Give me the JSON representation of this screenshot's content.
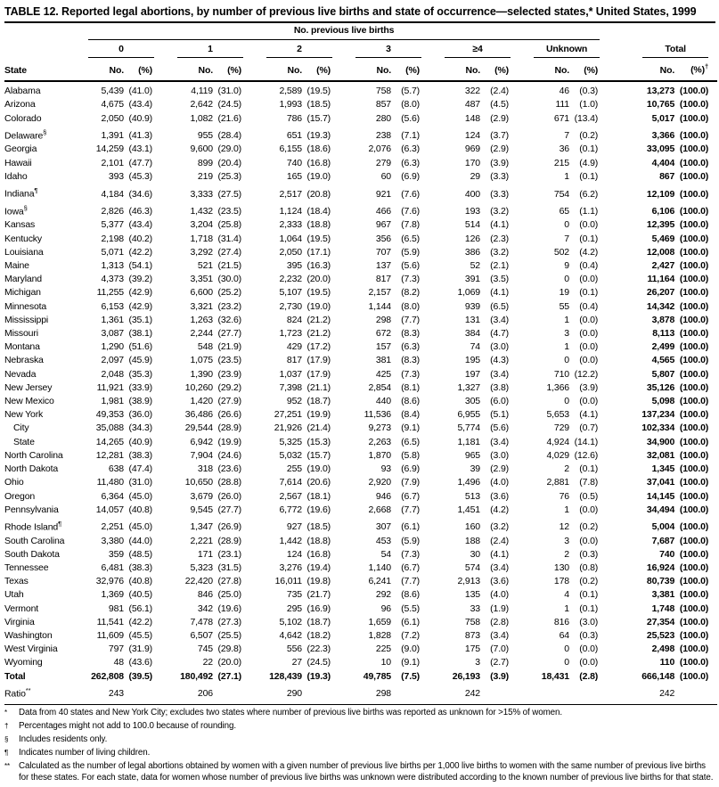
{
  "title": "TABLE 12. Reported legal abortions, by number of previous live births and state of occurrence—selected states,* United States, 1999",
  "table": {
    "spanner": "No. previous live births",
    "state_col": "State",
    "groups": [
      "0",
      "1",
      "2",
      "3",
      "≥4",
      "Unknown"
    ],
    "total_label": "Total",
    "no_label": "No.",
    "pct_label": "(%)",
    "total_pct_sup": "†",
    "rows": [
      {
        "state": "Alabama",
        "sup": "",
        "indent": false,
        "cells": [
          "5,439",
          "(41.0)",
          "4,119",
          "(31.0)",
          "2,589",
          "(19.5)",
          "758",
          "(5.7)",
          "322",
          "(2.4)",
          "46",
          "(0.3)",
          "13,273",
          "(100.0)"
        ]
      },
      {
        "state": "Arizona",
        "sup": "",
        "indent": false,
        "cells": [
          "4,675",
          "(43.4)",
          "2,642",
          "(24.5)",
          "1,993",
          "(18.5)",
          "857",
          "(8.0)",
          "487",
          "(4.5)",
          "111",
          "(1.0)",
          "10,765",
          "(100.0)"
        ]
      },
      {
        "state": "Colorado",
        "sup": "",
        "indent": false,
        "cells": [
          "2,050",
          "(40.9)",
          "1,082",
          "(21.6)",
          "786",
          "(15.7)",
          "280",
          "(5.6)",
          "148",
          "(2.9)",
          "671",
          "(13.4)",
          "5,017",
          "(100.0)"
        ]
      },
      {
        "state": "Delaware",
        "sup": "§",
        "indent": false,
        "cells": [
          "1,391",
          "(41.3)",
          "955",
          "(28.4)",
          "651",
          "(19.3)",
          "238",
          "(7.1)",
          "124",
          "(3.7)",
          "7",
          "(0.2)",
          "3,366",
          "(100.0)"
        ]
      },
      {
        "state": "Georgia",
        "sup": "",
        "indent": false,
        "cells": [
          "14,259",
          "(43.1)",
          "9,600",
          "(29.0)",
          "6,155",
          "(18.6)",
          "2,076",
          "(6.3)",
          "969",
          "(2.9)",
          "36",
          "(0.1)",
          "33,095",
          "(100.0)"
        ]
      },
      {
        "state": "Hawaii",
        "sup": "",
        "indent": false,
        "cells": [
          "2,101",
          "(47.7)",
          "899",
          "(20.4)",
          "740",
          "(16.8)",
          "279",
          "(6.3)",
          "170",
          "(3.9)",
          "215",
          "(4.9)",
          "4,404",
          "(100.0)"
        ]
      },
      {
        "state": "Idaho",
        "sup": "",
        "indent": false,
        "cells": [
          "393",
          "(45.3)",
          "219",
          "(25.3)",
          "165",
          "(19.0)",
          "60",
          "(6.9)",
          "29",
          "(3.3)",
          "1",
          "(0.1)",
          "867",
          "(100.0)"
        ]
      },
      {
        "state": "Indiana",
        "sup": "¶",
        "indent": false,
        "cells": [
          "4,184",
          "(34.6)",
          "3,333",
          "(27.5)",
          "2,517",
          "(20.8)",
          "921",
          "(7.6)",
          "400",
          "(3.3)",
          "754",
          "(6.2)",
          "12,109",
          "(100.0)"
        ]
      },
      {
        "state": "Iowa",
        "sup": "§",
        "indent": false,
        "cells": [
          "2,826",
          "(46.3)",
          "1,432",
          "(23.5)",
          "1,124",
          "(18.4)",
          "466",
          "(7.6)",
          "193",
          "(3.2)",
          "65",
          "(1.1)",
          "6,106",
          "(100.0)"
        ]
      },
      {
        "state": "Kansas",
        "sup": "",
        "indent": false,
        "cells": [
          "5,377",
          "(43.4)",
          "3,204",
          "(25.8)",
          "2,333",
          "(18.8)",
          "967",
          "(7.8)",
          "514",
          "(4.1)",
          "0",
          "(0.0)",
          "12,395",
          "(100.0)"
        ]
      },
      {
        "state": "Kentucky",
        "sup": "",
        "indent": false,
        "cells": [
          "2,198",
          "(40.2)",
          "1,718",
          "(31.4)",
          "1,064",
          "(19.5)",
          "356",
          "(6.5)",
          "126",
          "(2.3)",
          "7",
          "(0.1)",
          "5,469",
          "(100.0)"
        ]
      },
      {
        "state": "Louisiana",
        "sup": "",
        "indent": false,
        "cells": [
          "5,071",
          "(42.2)",
          "3,292",
          "(27.4)",
          "2,050",
          "(17.1)",
          "707",
          "(5.9)",
          "386",
          "(3.2)",
          "502",
          "(4.2)",
          "12,008",
          "(100.0)"
        ]
      },
      {
        "state": "Maine",
        "sup": "",
        "indent": false,
        "cells": [
          "1,313",
          "(54.1)",
          "521",
          "(21.5)",
          "395",
          "(16.3)",
          "137",
          "(5.6)",
          "52",
          "(2.1)",
          "9",
          "(0.4)",
          "2,427",
          "(100.0)"
        ]
      },
      {
        "state": "Maryland",
        "sup": "",
        "indent": false,
        "cells": [
          "4,373",
          "(39.2)",
          "3,351",
          "(30.0)",
          "2,232",
          "(20.0)",
          "817",
          "(7.3)",
          "391",
          "(3.5)",
          "0",
          "(0.0)",
          "11,164",
          "(100.0)"
        ]
      },
      {
        "state": "Michigan",
        "sup": "",
        "indent": false,
        "cells": [
          "11,255",
          "(42.9)",
          "6,600",
          "(25.2)",
          "5,107",
          "(19.5)",
          "2,157",
          "(8.2)",
          "1,069",
          "(4.1)",
          "19",
          "(0.1)",
          "26,207",
          "(100.0)"
        ]
      },
      {
        "state": "Minnesota",
        "sup": "",
        "indent": false,
        "cells": [
          "6,153",
          "(42.9)",
          "3,321",
          "(23.2)",
          "2,730",
          "(19.0)",
          "1,144",
          "(8.0)",
          "939",
          "(6.5)",
          "55",
          "(0.4)",
          "14,342",
          "(100.0)"
        ]
      },
      {
        "state": "Mississippi",
        "sup": "",
        "indent": false,
        "cells": [
          "1,361",
          "(35.1)",
          "1,263",
          "(32.6)",
          "824",
          "(21.2)",
          "298",
          "(7.7)",
          "131",
          "(3.4)",
          "1",
          "(0.0)",
          "3,878",
          "(100.0)"
        ]
      },
      {
        "state": "Missouri",
        "sup": "",
        "indent": false,
        "cells": [
          "3,087",
          "(38.1)",
          "2,244",
          "(27.7)",
          "1,723",
          "(21.2)",
          "672",
          "(8.3)",
          "384",
          "(4.7)",
          "3",
          "(0.0)",
          "8,113",
          "(100.0)"
        ]
      },
      {
        "state": "Montana",
        "sup": "",
        "indent": false,
        "cells": [
          "1,290",
          "(51.6)",
          "548",
          "(21.9)",
          "429",
          "(17.2)",
          "157",
          "(6.3)",
          "74",
          "(3.0)",
          "1",
          "(0.0)",
          "2,499",
          "(100.0)"
        ]
      },
      {
        "state": "Nebraska",
        "sup": "",
        "indent": false,
        "cells": [
          "2,097",
          "(45.9)",
          "1,075",
          "(23.5)",
          "817",
          "(17.9)",
          "381",
          "(8.3)",
          "195",
          "(4.3)",
          "0",
          "(0.0)",
          "4,565",
          "(100.0)"
        ]
      },
      {
        "state": "Nevada",
        "sup": "",
        "indent": false,
        "cells": [
          "2,048",
          "(35.3)",
          "1,390",
          "(23.9)",
          "1,037",
          "(17.9)",
          "425",
          "(7.3)",
          "197",
          "(3.4)",
          "710",
          "(12.2)",
          "5,807",
          "(100.0)"
        ]
      },
      {
        "state": "New Jersey",
        "sup": "",
        "indent": false,
        "cells": [
          "11,921",
          "(33.9)",
          "10,260",
          "(29.2)",
          "7,398",
          "(21.1)",
          "2,854",
          "(8.1)",
          "1,327",
          "(3.8)",
          "1,366",
          "(3.9)",
          "35,126",
          "(100.0)"
        ]
      },
      {
        "state": "New Mexico",
        "sup": "",
        "indent": false,
        "cells": [
          "1,981",
          "(38.9)",
          "1,420",
          "(27.9)",
          "952",
          "(18.7)",
          "440",
          "(8.6)",
          "305",
          "(6.0)",
          "0",
          "(0.0)",
          "5,098",
          "(100.0)"
        ]
      },
      {
        "state": "New York",
        "sup": "",
        "indent": false,
        "cells": [
          "49,353",
          "(36.0)",
          "36,486",
          "(26.6)",
          "27,251",
          "(19.9)",
          "11,536",
          "(8.4)",
          "6,955",
          "(5.1)",
          "5,653",
          "(4.1)",
          "137,234",
          "(100.0)"
        ]
      },
      {
        "state": "City",
        "sup": "",
        "indent": true,
        "cells": [
          "35,088",
          "(34.3)",
          "29,544",
          "(28.9)",
          "21,926",
          "(21.4)",
          "9,273",
          "(9.1)",
          "5,774",
          "(5.6)",
          "729",
          "(0.7)",
          "102,334",
          "(100.0)"
        ]
      },
      {
        "state": "State",
        "sup": "",
        "indent": true,
        "cells": [
          "14,265",
          "(40.9)",
          "6,942",
          "(19.9)",
          "5,325",
          "(15.3)",
          "2,263",
          "(6.5)",
          "1,181",
          "(3.4)",
          "4,924",
          "(14.1)",
          "34,900",
          "(100.0)"
        ]
      },
      {
        "state": "North Carolina",
        "sup": "",
        "indent": false,
        "cells": [
          "12,281",
          "(38.3)",
          "7,904",
          "(24.6)",
          "5,032",
          "(15.7)",
          "1,870",
          "(5.8)",
          "965",
          "(3.0)",
          "4,029",
          "(12.6)",
          "32,081",
          "(100.0)"
        ]
      },
      {
        "state": "North Dakota",
        "sup": "",
        "indent": false,
        "cells": [
          "638",
          "(47.4)",
          "318",
          "(23.6)",
          "255",
          "(19.0)",
          "93",
          "(6.9)",
          "39",
          "(2.9)",
          "2",
          "(0.1)",
          "1,345",
          "(100.0)"
        ]
      },
      {
        "state": "Ohio",
        "sup": "",
        "indent": false,
        "cells": [
          "11,480",
          "(31.0)",
          "10,650",
          "(28.8)",
          "7,614",
          "(20.6)",
          "2,920",
          "(7.9)",
          "1,496",
          "(4.0)",
          "2,881",
          "(7.8)",
          "37,041",
          "(100.0)"
        ]
      },
      {
        "state": "Oregon",
        "sup": "",
        "indent": false,
        "cells": [
          "6,364",
          "(45.0)",
          "3,679",
          "(26.0)",
          "2,567",
          "(18.1)",
          "946",
          "(6.7)",
          "513",
          "(3.6)",
          "76",
          "(0.5)",
          "14,145",
          "(100.0)"
        ]
      },
      {
        "state": "Pennsylvania",
        "sup": "",
        "indent": false,
        "cells": [
          "14,057",
          "(40.8)",
          "9,545",
          "(27.7)",
          "6,772",
          "(19.6)",
          "2,668",
          "(7.7)",
          "1,451",
          "(4.2)",
          "1",
          "(0.0)",
          "34,494",
          "(100.0)"
        ]
      },
      {
        "state": "Rhode Island",
        "sup": "¶",
        "indent": false,
        "cells": [
          "2,251",
          "(45.0)",
          "1,347",
          "(26.9)",
          "927",
          "(18.5)",
          "307",
          "(6.1)",
          "160",
          "(3.2)",
          "12",
          "(0.2)",
          "5,004",
          "(100.0)"
        ]
      },
      {
        "state": "South Carolina",
        "sup": "",
        "indent": false,
        "cells": [
          "3,380",
          "(44.0)",
          "2,221",
          "(28.9)",
          "1,442",
          "(18.8)",
          "453",
          "(5.9)",
          "188",
          "(2.4)",
          "3",
          "(0.0)",
          "7,687",
          "(100.0)"
        ]
      },
      {
        "state": "South Dakota",
        "sup": "",
        "indent": false,
        "cells": [
          "359",
          "(48.5)",
          "171",
          "(23.1)",
          "124",
          "(16.8)",
          "54",
          "(7.3)",
          "30",
          "(4.1)",
          "2",
          "(0.3)",
          "740",
          "(100.0)"
        ]
      },
      {
        "state": "Tennessee",
        "sup": "",
        "indent": false,
        "cells": [
          "6,481",
          "(38.3)",
          "5,323",
          "(31.5)",
          "3,276",
          "(19.4)",
          "1,140",
          "(6.7)",
          "574",
          "(3.4)",
          "130",
          "(0.8)",
          "16,924",
          "(100.0)"
        ]
      },
      {
        "state": "Texas",
        "sup": "",
        "indent": false,
        "cells": [
          "32,976",
          "(40.8)",
          "22,420",
          "(27.8)",
          "16,011",
          "(19.8)",
          "6,241",
          "(7.7)",
          "2,913",
          "(3.6)",
          "178",
          "(0.2)",
          "80,739",
          "(100.0)"
        ]
      },
      {
        "state": "Utah",
        "sup": "",
        "indent": false,
        "cells": [
          "1,369",
          "(40.5)",
          "846",
          "(25.0)",
          "735",
          "(21.7)",
          "292",
          "(8.6)",
          "135",
          "(4.0)",
          "4",
          "(0.1)",
          "3,381",
          "(100.0)"
        ]
      },
      {
        "state": "Vermont",
        "sup": "",
        "indent": false,
        "cells": [
          "981",
          "(56.1)",
          "342",
          "(19.6)",
          "295",
          "(16.9)",
          "96",
          "(5.5)",
          "33",
          "(1.9)",
          "1",
          "(0.1)",
          "1,748",
          "(100.0)"
        ]
      },
      {
        "state": "Virginia",
        "sup": "",
        "indent": false,
        "cells": [
          "11,541",
          "(42.2)",
          "7,478",
          "(27.3)",
          "5,102",
          "(18.7)",
          "1,659",
          "(6.1)",
          "758",
          "(2.8)",
          "816",
          "(3.0)",
          "27,354",
          "(100.0)"
        ]
      },
      {
        "state": "Washington",
        "sup": "",
        "indent": false,
        "cells": [
          "11,609",
          "(45.5)",
          "6,507",
          "(25.5)",
          "4,642",
          "(18.2)",
          "1,828",
          "(7.2)",
          "873",
          "(3.4)",
          "64",
          "(0.3)",
          "25,523",
          "(100.0)"
        ]
      },
      {
        "state": "West Virginia",
        "sup": "",
        "indent": false,
        "cells": [
          "797",
          "(31.9)",
          "745",
          "(29.8)",
          "556",
          "(22.3)",
          "225",
          "(9.0)",
          "175",
          "(7.0)",
          "0",
          "(0.0)",
          "2,498",
          "(100.0)"
        ]
      },
      {
        "state": "Wyoming",
        "sup": "",
        "indent": false,
        "cells": [
          "48",
          "(43.6)",
          "22",
          "(20.0)",
          "27",
          "(24.5)",
          "10",
          "(9.1)",
          "3",
          "(2.7)",
          "0",
          "(0.0)",
          "110",
          "(100.0)"
        ]
      }
    ],
    "total_row": {
      "label": "Total",
      "cells": [
        "262,808",
        "(39.5)",
        "180,492",
        "(27.1)",
        "128,439",
        "(19.3)",
        "49,785",
        "(7.5)",
        "26,193",
        "(3.9)",
        "18,431",
        "(2.8)",
        "666,148",
        "(100.0)"
      ]
    },
    "ratio_row": {
      "label": "Ratio",
      "sup": "**",
      "values": [
        "243",
        "206",
        "290",
        "298",
        "242",
        "",
        "242"
      ]
    }
  },
  "footnotes": [
    {
      "marker": "*",
      "text": "Data from 40 states and New York City; excludes two states where number of previous live births was reported as unknown for >15% of women."
    },
    {
      "marker": "†",
      "text": "Percentages might not add to 100.0 because of rounding."
    },
    {
      "marker": "§",
      "text": "Includes residents only."
    },
    {
      "marker": "¶",
      "text": "Indicates number of living children."
    },
    {
      "marker": "**",
      "text": "Calculated as the number of legal abortions obtained by women with a given number of previous live births per 1,000 live births to women with the same number of previous live births for these states. For each state, data for women whose number of previous live births was unknown were distributed according to the known number of previous live births for that state."
    }
  ]
}
